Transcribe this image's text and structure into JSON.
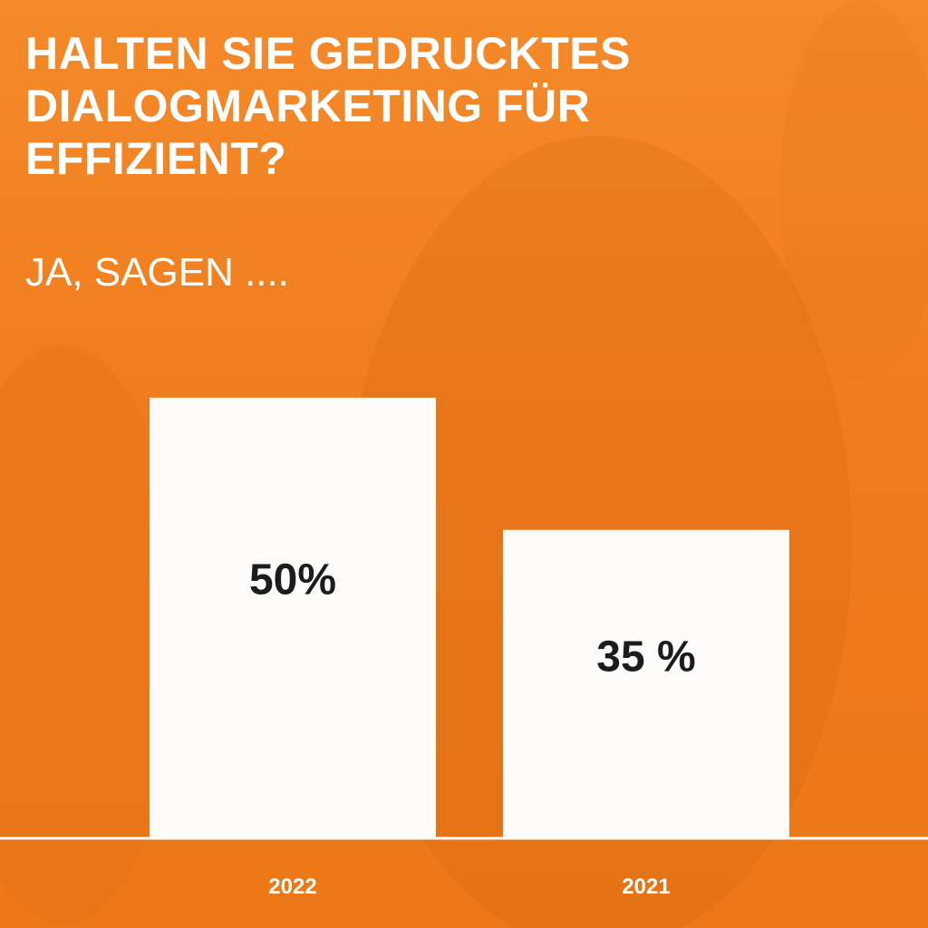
{
  "title": "HALTEN SIE GEDRUCKTES\nDIALOGMARKETING FÜR\nEFFIZIENT?",
  "subtitle": "JA, SAGEN ....",
  "colors": {
    "background": "#f07d1e",
    "bars": "#fdfcfb",
    "value_text": "#1c1c1c",
    "text": "#ffffff"
  },
  "chart_data": {
    "type": "bar",
    "title": "HALTEN SIE GEDRUCKTES DIALOGMARKETING FÜR EFFIZIENT?",
    "subtitle": "JA, SAGEN ....",
    "categories": [
      "2022",
      "2021"
    ],
    "values": [
      50,
      35
    ],
    "data_labels": [
      "50%",
      "35 %"
    ],
    "unit": "%",
    "xlabel": "",
    "ylabel": "",
    "ylim": [
      0,
      65
    ],
    "grid": false,
    "legend": "none"
  }
}
